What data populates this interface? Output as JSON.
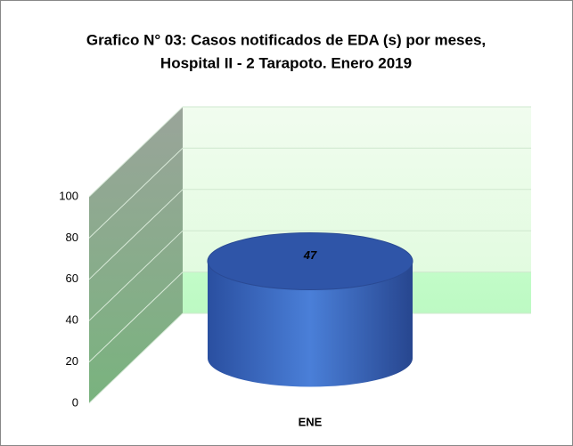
{
  "chart_data": {
    "type": "bar3d",
    "title": [
      "Grafico N° 03: Casos notificados  de EDA (s) por meses,",
      "Hospital II - 2 Tarapoto. Enero 2019"
    ],
    "categories": [
      "ENE"
    ],
    "values": [
      47
    ],
    "color": "#3a62b8",
    "ylim": [
      0,
      100
    ],
    "yticks": [
      0,
      20,
      40,
      60,
      80,
      100
    ],
    "grid": true
  }
}
